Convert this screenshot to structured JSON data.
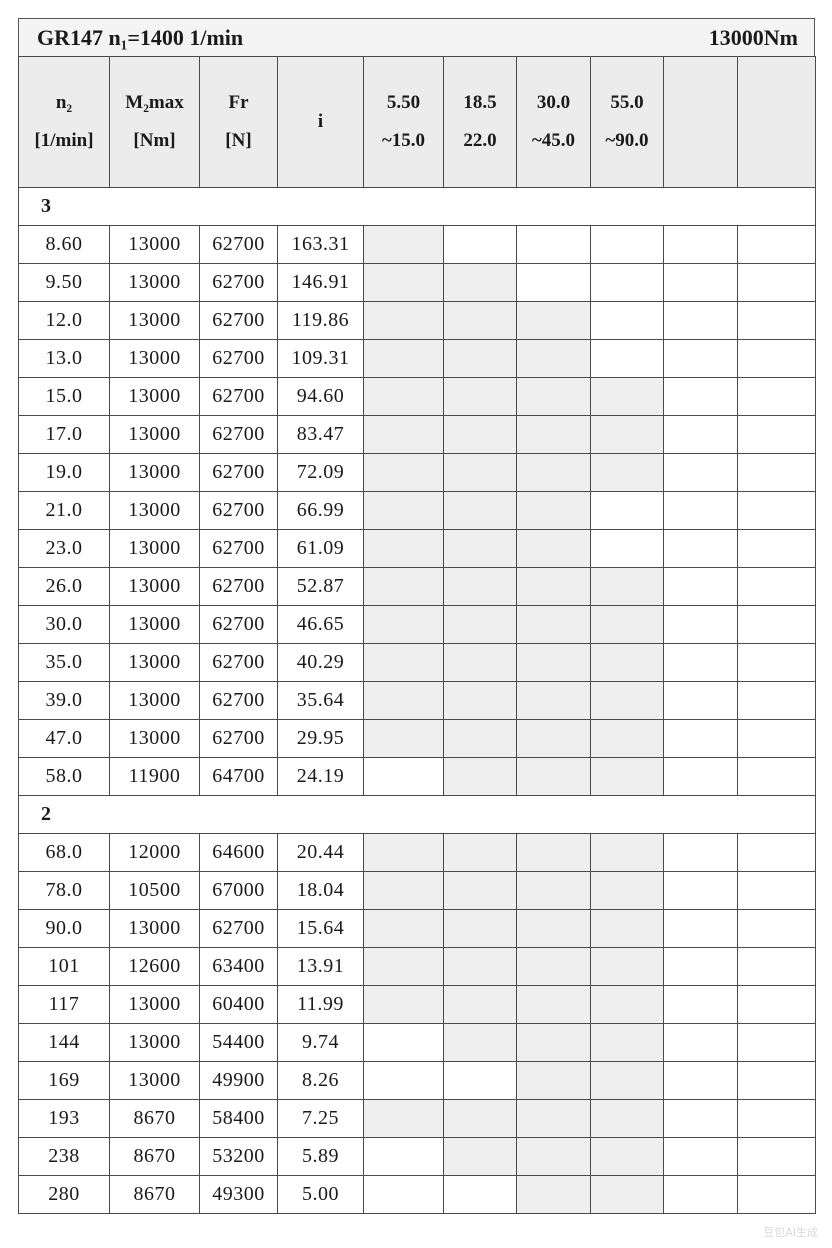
{
  "title": {
    "left": "GR147 n₁=1400 1/min",
    "right": "13000Nm"
  },
  "headers": [
    {
      "line1": "n₂",
      "line2": "[1/min]"
    },
    {
      "line1": "M₂max",
      "line2": "[Nm]"
    },
    {
      "line1": "Fr",
      "line2": "[N]"
    },
    {
      "line1": "i",
      "line2": ""
    },
    {
      "line1": "5.50",
      "line2": "~15.0"
    },
    {
      "line1": "18.5",
      "line2": "22.0"
    },
    {
      "line1": "30.0",
      "line2": "~45.0"
    },
    {
      "line1": "55.0",
      "line2": "~90.0"
    },
    {
      "line1": "",
      "line2": ""
    },
    {
      "line1": "",
      "line2": ""
    }
  ],
  "colors": {
    "shaded": "#efefef",
    "header_bg": "#ececec",
    "grid": "#4a4a4a"
  },
  "groups": [
    {
      "stage": "3",
      "rows": [
        {
          "n2": "8.60",
          "m2max": "13000",
          "fr": "62700",
          "i": "163.31",
          "shaded": [
            1,
            0,
            0,
            0
          ]
        },
        {
          "n2": "9.50",
          "m2max": "13000",
          "fr": "62700",
          "i": "146.91",
          "shaded": [
            1,
            1,
            0,
            0
          ]
        },
        {
          "n2": "12.0",
          "m2max": "13000",
          "fr": "62700",
          "i": "119.86",
          "shaded": [
            1,
            1,
            1,
            0
          ]
        },
        {
          "n2": "13.0",
          "m2max": "13000",
          "fr": "62700",
          "i": "109.31",
          "shaded": [
            1,
            1,
            1,
            0
          ]
        },
        {
          "n2": "15.0",
          "m2max": "13000",
          "fr": "62700",
          "i": "94.60",
          "shaded": [
            1,
            1,
            1,
            1
          ]
        },
        {
          "n2": "17.0",
          "m2max": "13000",
          "fr": "62700",
          "i": "83.47",
          "shaded": [
            1,
            1,
            1,
            1
          ]
        },
        {
          "n2": "19.0",
          "m2max": "13000",
          "fr": "62700",
          "i": "72.09",
          "shaded": [
            1,
            1,
            1,
            1
          ]
        },
        {
          "n2": "21.0",
          "m2max": "13000",
          "fr": "62700",
          "i": "66.99",
          "shaded": [
            1,
            1,
            1,
            0
          ]
        },
        {
          "n2": "23.0",
          "m2max": "13000",
          "fr": "62700",
          "i": "61.09",
          "shaded": [
            1,
            1,
            1,
            0
          ]
        },
        {
          "n2": "26.0",
          "m2max": "13000",
          "fr": "62700",
          "i": "52.87",
          "shaded": [
            1,
            1,
            1,
            1
          ]
        },
        {
          "n2": "30.0",
          "m2max": "13000",
          "fr": "62700",
          "i": "46.65",
          "shaded": [
            1,
            1,
            1,
            1
          ]
        },
        {
          "n2": "35.0",
          "m2max": "13000",
          "fr": "62700",
          "i": "40.29",
          "shaded": [
            1,
            1,
            1,
            1
          ]
        },
        {
          "n2": "39.0",
          "m2max": "13000",
          "fr": "62700",
          "i": "35.64",
          "shaded": [
            1,
            1,
            1,
            1
          ]
        },
        {
          "n2": "47.0",
          "m2max": "13000",
          "fr": "62700",
          "i": "29.95",
          "shaded": [
            1,
            1,
            1,
            1
          ]
        },
        {
          "n2": "58.0",
          "m2max": "11900",
          "fr": "64700",
          "i": "24.19",
          "shaded": [
            0,
            1,
            1,
            1
          ]
        }
      ]
    },
    {
      "stage": "2",
      "rows": [
        {
          "n2": "68.0",
          "m2max": "12000",
          "fr": "64600",
          "i": "20.44",
          "shaded": [
            1,
            1,
            1,
            1
          ]
        },
        {
          "n2": "78.0",
          "m2max": "10500",
          "fr": "67000",
          "i": "18.04",
          "shaded": [
            1,
            1,
            1,
            1
          ]
        },
        {
          "n2": "90.0",
          "m2max": "13000",
          "fr": "62700",
          "i": "15.64",
          "shaded": [
            1,
            1,
            1,
            1
          ]
        },
        {
          "n2": "101",
          "m2max": "12600",
          "fr": "63400",
          "i": "13.91",
          "shaded": [
            1,
            1,
            1,
            1
          ]
        },
        {
          "n2": "117",
          "m2max": "13000",
          "fr": "60400",
          "i": "11.99",
          "shaded": [
            1,
            1,
            1,
            1
          ]
        },
        {
          "n2": "144",
          "m2max": "13000",
          "fr": "54400",
          "i": "9.74",
          "shaded": [
            0,
            1,
            1,
            1
          ]
        },
        {
          "n2": "169",
          "m2max": "13000",
          "fr": "49900",
          "i": "8.26",
          "shaded": [
            0,
            0,
            1,
            1
          ]
        },
        {
          "n2": "193",
          "m2max": "8670",
          "fr": "58400",
          "i": "7.25",
          "shaded": [
            1,
            1,
            1,
            1
          ]
        },
        {
          "n2": "238",
          "m2max": "8670",
          "fr": "53200",
          "i": "5.89",
          "shaded": [
            0,
            1,
            1,
            1
          ]
        },
        {
          "n2": "280",
          "m2max": "8670",
          "fr": "49300",
          "i": "5.00",
          "shaded": [
            0,
            0,
            1,
            1
          ]
        }
      ]
    }
  ],
  "watermark": "豆包AI生成"
}
